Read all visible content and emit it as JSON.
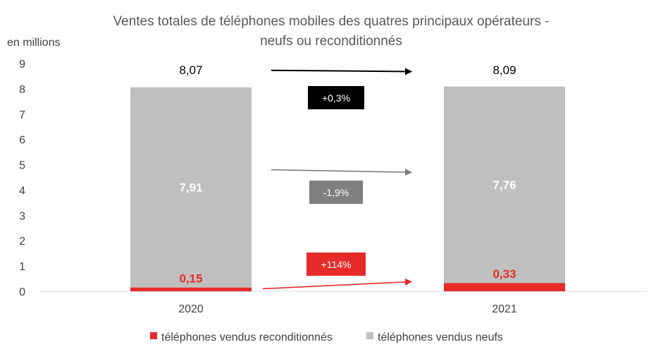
{
  "chart_data": {
    "type": "bar",
    "stacked": true,
    "title": [
      "Ventes totales de téléphones mobiles des quatres principaux opérateurs -",
      "neufs ou reconditionnés"
    ],
    "ylabel": "en millions",
    "ylim": [
      0,
      9
    ],
    "yticks": [
      "0",
      "1",
      "2",
      "3",
      "4",
      "5",
      "6",
      "7",
      "8",
      "9"
    ],
    "categories": [
      "2020",
      "2021"
    ],
    "series": [
      {
        "name": "téléphones vendus reconditionnés",
        "values": [
          0.15,
          0.33
        ],
        "labels": [
          "0,15",
          "0,33"
        ],
        "color": "#e62a2a"
      },
      {
        "name": "téléphones vendus neufs",
        "values": [
          7.91,
          7.76
        ],
        "labels": [
          "7,91",
          "7,76"
        ],
        "color": "#bfbfbf"
      }
    ],
    "totals": {
      "values": [
        8.07,
        8.09
      ],
      "labels": [
        "8,07",
        "8,09"
      ]
    },
    "changes": [
      {
        "label": "+0,3%",
        "color": "#000000",
        "from_value": 8.73,
        "to_value": 8.68
      },
      {
        "label": "-1,9%",
        "color": "#7f7f7f",
        "from_value": 4.8,
        "to_value": 4.7
      },
      {
        "label": "+114%",
        "color": "#e62a2a",
        "from_value": 0.1,
        "to_value": 0.38
      }
    ],
    "grid": false,
    "legend_position": "bottom"
  }
}
